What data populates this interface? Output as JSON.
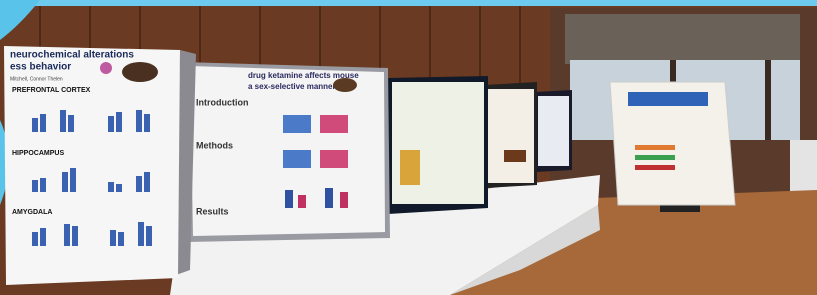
{
  "scene": {
    "poster_left": {
      "title_lines": [
        "neurochemical alterations",
        "ess behavior"
      ],
      "byline": "Mitchell, Connor Thelen",
      "regions": [
        "PREFRONTAL CORTEX",
        "HIPPOCAMPUS",
        "AMYGDALA"
      ]
    },
    "poster_middle": {
      "title_lines": [
        "drug ketamine affects mouse",
        "a sex-selective manner"
      ],
      "sections": [
        "Introduction",
        "Methods",
        "Results"
      ]
    }
  }
}
